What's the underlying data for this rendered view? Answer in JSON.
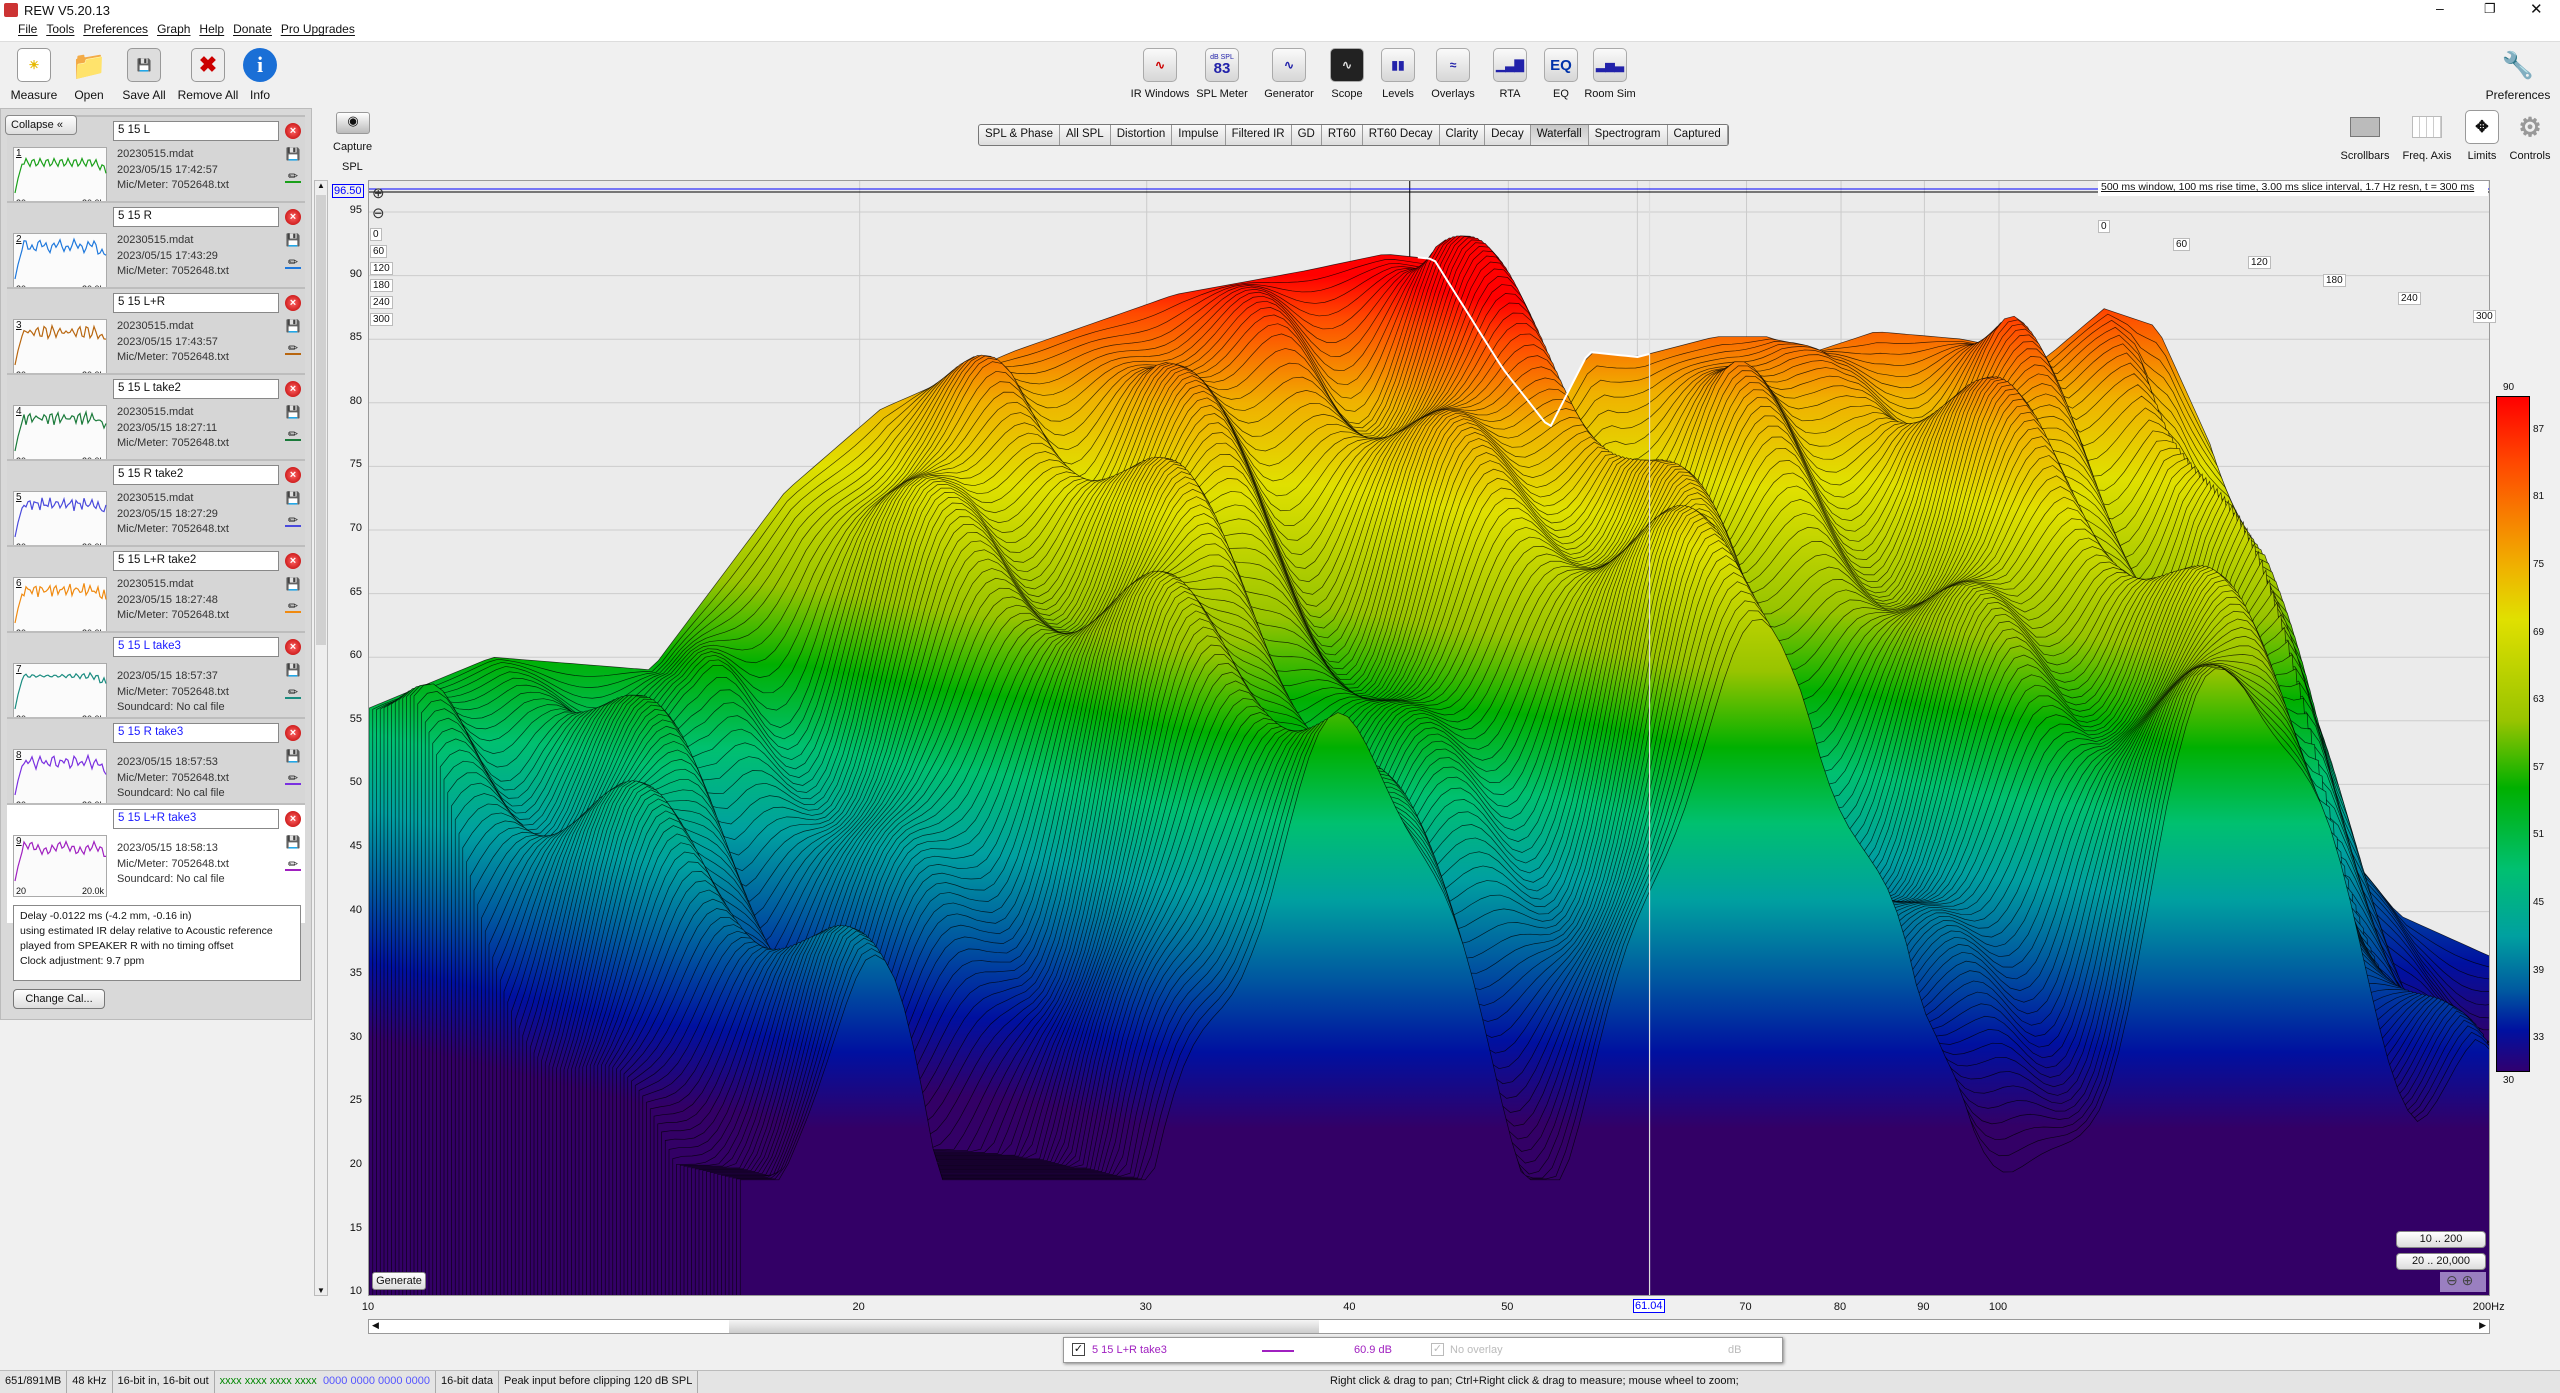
{
  "window": {
    "title": "REW V5.20.13"
  },
  "menu": [
    "File",
    "Tools",
    "Preferences",
    "Graph",
    "Help",
    "Donate",
    "Pro Upgrades"
  ],
  "toolbar_left": [
    {
      "label": "Measure",
      "icon": "measure-icon"
    },
    {
      "label": "Open",
      "icon": "folder-icon"
    },
    {
      "label": "Save All",
      "icon": "save-icon"
    },
    {
      "label": "Remove All",
      "icon": "remove-icon"
    },
    {
      "label": "Info",
      "icon": "info-icon"
    }
  ],
  "toolbar_center": [
    {
      "label": "IR Windows",
      "icon": "ir-windows-icon"
    },
    {
      "label": "SPL Meter",
      "icon": "spl-meter-icon",
      "badge_top": "dB SPL",
      "badge_value": "83"
    },
    {
      "label": "Generator",
      "icon": "generator-icon"
    },
    {
      "label": "Scope",
      "icon": "scope-icon"
    },
    {
      "label": "Levels",
      "icon": "levels-icon"
    },
    {
      "label": "Overlays",
      "icon": "overlays-icon"
    },
    {
      "label": "RTA",
      "icon": "rta-icon"
    },
    {
      "label": "EQ",
      "icon": "eq-icon",
      "glyph": "EQ"
    },
    {
      "label": "Room Sim",
      "icon": "room-sim-icon"
    }
  ],
  "toolbar_right": {
    "preferences": "Preferences",
    "scrollbars": "Scrollbars",
    "freq_axis": "Freq. Axis",
    "limits": "Limits",
    "controls": "Controls"
  },
  "tabs": [
    "SPL & Phase",
    "All SPL",
    "Distortion",
    "Impulse",
    "Filtered IR",
    "GD",
    "RT60",
    "RT60 Decay",
    "Clarity",
    "Decay",
    "Waterfall",
    "Spectrogram",
    "Captured"
  ],
  "active_tab": "Waterfall",
  "panel": {
    "collapse": "Collapse",
    "change_cal": "Change Cal...",
    "notes": [
      "Delay -0.0122 ms (-4.2 mm, -0.16 in)",
      "using estimated IR delay relative to Acoustic reference",
      "played from SPEAKER R with no timing offset",
      "Clock adjustment: 9.7 ppm"
    ],
    "thumb_x_min": "20",
    "thumb_x_max": "20.0k"
  },
  "measurements": [
    {
      "num": "1",
      "name": "5 15 L",
      "lines": [
        "20230515.mdat",
        "2023/05/15 17:42:57",
        "Mic/Meter: 7052648.txt"
      ],
      "color": "#1aa01a",
      "name_color": "#111"
    },
    {
      "num": "2",
      "name": "5 15 R",
      "lines": [
        "20230515.mdat",
        "2023/05/15 17:43:29",
        "Mic/Meter: 7052648.txt"
      ],
      "color": "#1e78dc",
      "name_color": "#111"
    },
    {
      "num": "3",
      "name": "5 15 L+R",
      "lines": [
        "20230515.mdat",
        "2023/05/15 17:43:57",
        "Mic/Meter: 7052648.txt"
      ],
      "color": "#b8660f",
      "name_color": "#111"
    },
    {
      "num": "4",
      "name": "5 15 L take2",
      "lines": [
        "20230515.mdat",
        "2023/05/15 18:27:11",
        "Mic/Meter: 7052648.txt"
      ],
      "color": "#1a7a3a",
      "name_color": "#111"
    },
    {
      "num": "5",
      "name": "5 15 R take2",
      "lines": [
        "20230515.mdat",
        "2023/05/15 18:27:29",
        "Mic/Meter: 7052648.txt"
      ],
      "color": "#4a4adc",
      "name_color": "#111"
    },
    {
      "num": "6",
      "name": "5 15 L+R take2",
      "lines": [
        "20230515.mdat",
        "2023/05/15 18:27:48",
        "Mic/Meter: 7052648.txt"
      ],
      "color": "#f08a10",
      "name_color": "#111"
    },
    {
      "num": "7",
      "name": "5 15 L take3",
      "lines": [
        "2023/05/15 18:57:37",
        "Mic/Meter: 7052648.txt",
        "Soundcard: No cal file"
      ],
      "color": "#1a8c80",
      "name_color": "#1a1aff"
    },
    {
      "num": "8",
      "name": "5 15 R take3",
      "lines": [
        "2023/05/15 18:57:53",
        "Mic/Meter: 7052648.txt",
        "Soundcard: No cal file"
      ],
      "color": "#7a30e0",
      "name_color": "#1a1aff"
    },
    {
      "num": "9",
      "name": "5 15 L+R take3",
      "lines": [
        "2023/05/15 18:58:13",
        "Mic/Meter: 7052648.txt",
        "Soundcard: No cal file"
      ],
      "color": "#a020c0",
      "name_color": "#1a1aff"
    }
  ],
  "graph": {
    "capture": "Capture",
    "y_title": "SPL",
    "cursor_y": "96.50",
    "cursor_x": "61.04",
    "info": "500 ms window, 100 ms rise time, 3.00 ms slice interval, 1.7 Hz resn, t = 300 ms",
    "generate": "Generate",
    "range1": "10 .. 200",
    "range2": "20 .. 20,000"
  },
  "legend": {
    "name": "5 15 L+R take3",
    "value": "60.9 dB",
    "overlay": "No overlay",
    "overlay_unit": "dB",
    "color": "#a020c0"
  },
  "status": {
    "memory": "651/891MB",
    "rate": "48 kHz",
    "bits": "16-bit in, 16-bit out",
    "in_levels": "xxxx xxxx  xxxx xxxx",
    "out_levels": "0000 0000  0000 0000",
    "data": "16-bit data",
    "peak": "Peak input before clipping 120 dB SPL",
    "hint": "Right click & drag to pan; Ctrl+Right click & drag to measure; mouse wheel to zoom;"
  },
  "chart_data": {
    "type": "waterfall",
    "xlabel": "Hz",
    "ylabel": "SPL",
    "xscale": "log",
    "xlim": [
      10,
      200
    ],
    "ylim": [
      10,
      96.5
    ],
    "x_ticks": [
      "10",
      "20",
      "30",
      "40",
      "50",
      "70",
      "80",
      "90",
      "100",
      "200Hz"
    ],
    "y_ticks": [
      "95",
      "90",
      "85",
      "80",
      "75",
      "70",
      "65",
      "60",
      "55",
      "50",
      "45",
      "40",
      "35",
      "30",
      "25",
      "20",
      "15",
      "10"
    ],
    "time_ticks_ms": [
      "0",
      "60",
      "120",
      "180",
      "240",
      "300"
    ],
    "slice_interval_ms": 3,
    "duration_ms": 300,
    "colorbar": {
      "min": 30,
      "max": 90,
      "ticks": [
        "90",
        "87",
        "81",
        "75",
        "69",
        "63",
        "57",
        "51",
        "45",
        "39",
        "33",
        "30"
      ]
    },
    "envelope_t0": {
      "freq_hz": [
        10,
        11.9,
        14.9,
        18,
        20.6,
        24.8,
        31.2,
        37.6,
        42,
        45,
        49.6,
        53,
        56,
        60,
        67,
        72,
        77,
        84,
        95,
        107,
        116,
        125,
        136,
        143,
        157,
        176,
        200
      ],
      "spl_db": [
        56,
        60,
        59,
        73,
        79.5,
        84,
        88.5,
        90.4,
        91.7,
        91.3,
        82.7,
        78,
        84,
        83.6,
        85.2,
        85.2,
        84,
        85.6,
        85,
        83.6,
        87.4,
        86,
        75.6,
        60,
        47.4,
        39.7,
        36.5
      ]
    }
  }
}
